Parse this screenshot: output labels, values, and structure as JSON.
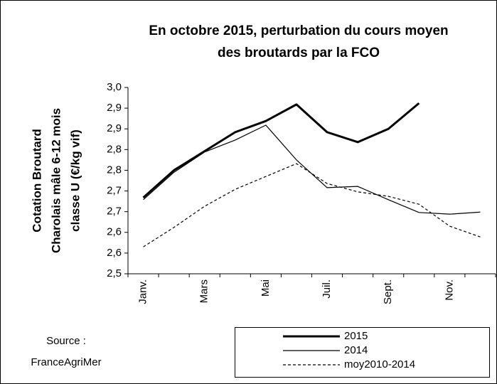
{
  "chart_data": {
    "type": "line",
    "title": [
      "En octobre 2015, perturbation du cours moyen",
      "des broutards par la FCO"
    ],
    "ylabel": [
      "Cotation Broutard",
      "Charolais mâle 6-12 mois",
      "classe U  (€/kg vif)"
    ],
    "source": [
      "Source :",
      "FranceAgriMer"
    ],
    "categories": [
      "Janv.",
      null,
      "Mars",
      null,
      "Mai",
      null,
      "Juil.",
      null,
      "Sept.",
      null,
      "Nov.",
      null
    ],
    "ylim": [
      2.5,
      2.95
    ],
    "yticks": [
      {
        "value": 2.5,
        "label": "2,5"
      },
      {
        "value": 2.55,
        "label": "2,6"
      },
      {
        "value": 2.6,
        "label": "2,6"
      },
      {
        "value": 2.65,
        "label": "2,7"
      },
      {
        "value": 2.7,
        "label": "2,7"
      },
      {
        "value": 2.75,
        "label": "2,8"
      },
      {
        "value": 2.8,
        "label": "2,8"
      },
      {
        "value": 2.85,
        "label": "2,9"
      },
      {
        "value": 2.9,
        "label": "2,9"
      },
      {
        "value": 2.95,
        "label": "3,0"
      }
    ],
    "series": [
      {
        "name": "2015",
        "color": "#000000",
        "linewidth": 3,
        "linestyle": "solid",
        "values": [
          2.684,
          2.75,
          2.796,
          2.842,
          2.869,
          2.909,
          2.842,
          2.818,
          2.85,
          2.912,
          null,
          null
        ]
      },
      {
        "name": "2014",
        "color": "#000000",
        "linewidth": 1.2,
        "linestyle": "solid",
        "values": [
          2.679,
          2.745,
          2.794,
          2.823,
          2.859,
          2.775,
          2.708,
          2.711,
          2.679,
          2.648,
          2.644,
          2.649
        ]
      },
      {
        "name": "moy2010-2014",
        "color": "#000000",
        "linewidth": 1.2,
        "linestyle": "dashed",
        "values": [
          2.565,
          2.612,
          2.663,
          2.704,
          2.735,
          2.766,
          2.718,
          2.698,
          2.687,
          2.668,
          2.615,
          2.589
        ]
      }
    ]
  }
}
